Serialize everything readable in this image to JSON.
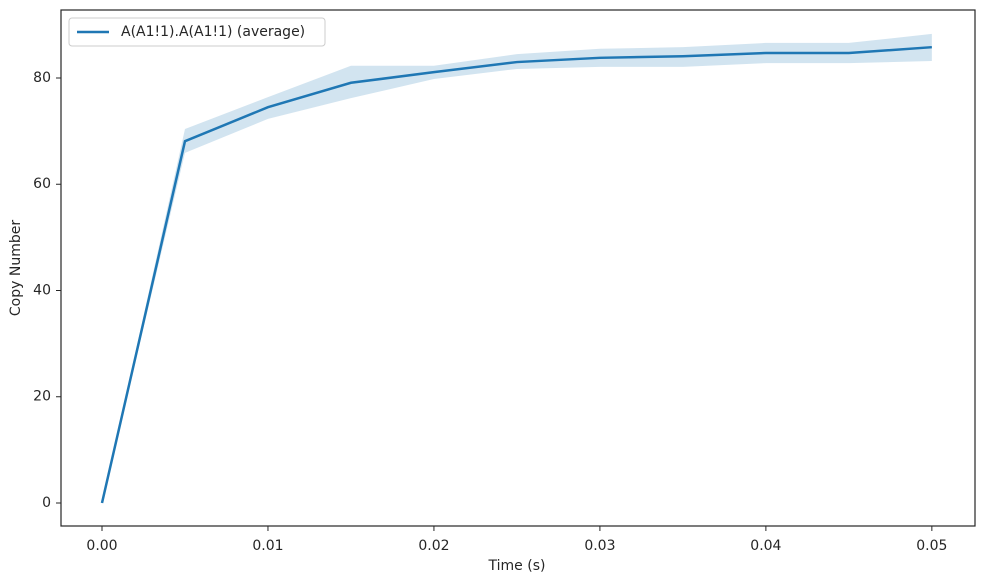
{
  "chart_data": {
    "type": "line",
    "xlabel": "Time (s)",
    "ylabel": "Copy Number",
    "x": [
      0,
      0.005,
      0.01,
      0.015,
      0.02,
      0.025,
      0.03,
      0.035,
      0.04,
      0.045,
      0.05
    ],
    "series": [
      {
        "name": "A(A1!1).A(A1!1) (average)",
        "color": "#1f77b4",
        "values": [
          0,
          68.1,
          74.5,
          79.1,
          81.1,
          83.0,
          83.8,
          84.1,
          84.7,
          84.7,
          85.8
        ],
        "upper": [
          0,
          70.4,
          76.4,
          82.3,
          82.3,
          84.5,
          85.5,
          85.8,
          86.6,
          86.6,
          88.3
        ],
        "lower": [
          0,
          65.9,
          72.3,
          76.2,
          79.8,
          81.7,
          82.1,
          82.1,
          82.8,
          82.8,
          83.2
        ]
      }
    ],
    "xlim": [
      -0.00247,
      0.0526
    ],
    "ylim": [
      -4.33,
      92.8
    ],
    "xticks": [
      {
        "value": 0,
        "label": "0.00"
      },
      {
        "value": 0.01,
        "label": "0.01"
      },
      {
        "value": 0.02,
        "label": "0.02"
      },
      {
        "value": 0.03,
        "label": "0.03"
      },
      {
        "value": 0.04,
        "label": "0.04"
      },
      {
        "value": 0.05,
        "label": "0.05"
      }
    ],
    "yticks": [
      0,
      20,
      40,
      60,
      80
    ],
    "legend": "upper left"
  }
}
